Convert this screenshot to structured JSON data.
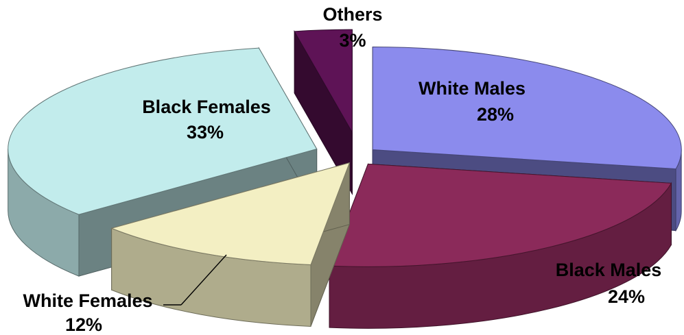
{
  "chart_data": {
    "type": "pie",
    "style": "3d-exploded",
    "slices": [
      {
        "label": "White Males",
        "value": 28,
        "value_label": "28%",
        "color": "#8b8bed",
        "label_position": "inside"
      },
      {
        "label": "Black Males",
        "value": 24,
        "value_label": "24%",
        "color": "#8b2a5a",
        "label_position": "outside"
      },
      {
        "label": "White Females",
        "value": 12,
        "value_label": "12%",
        "color": "#f3efc3",
        "label_position": "outside-leader"
      },
      {
        "label": "Black Females",
        "value": 33,
        "value_label": "33%",
        "color": "#c2ecec",
        "label_position": "inside"
      },
      {
        "label": "Others",
        "value": 3,
        "value_label": "3%",
        "color": "#5e1356",
        "label_position": "outside"
      }
    ],
    "legend": "none"
  }
}
